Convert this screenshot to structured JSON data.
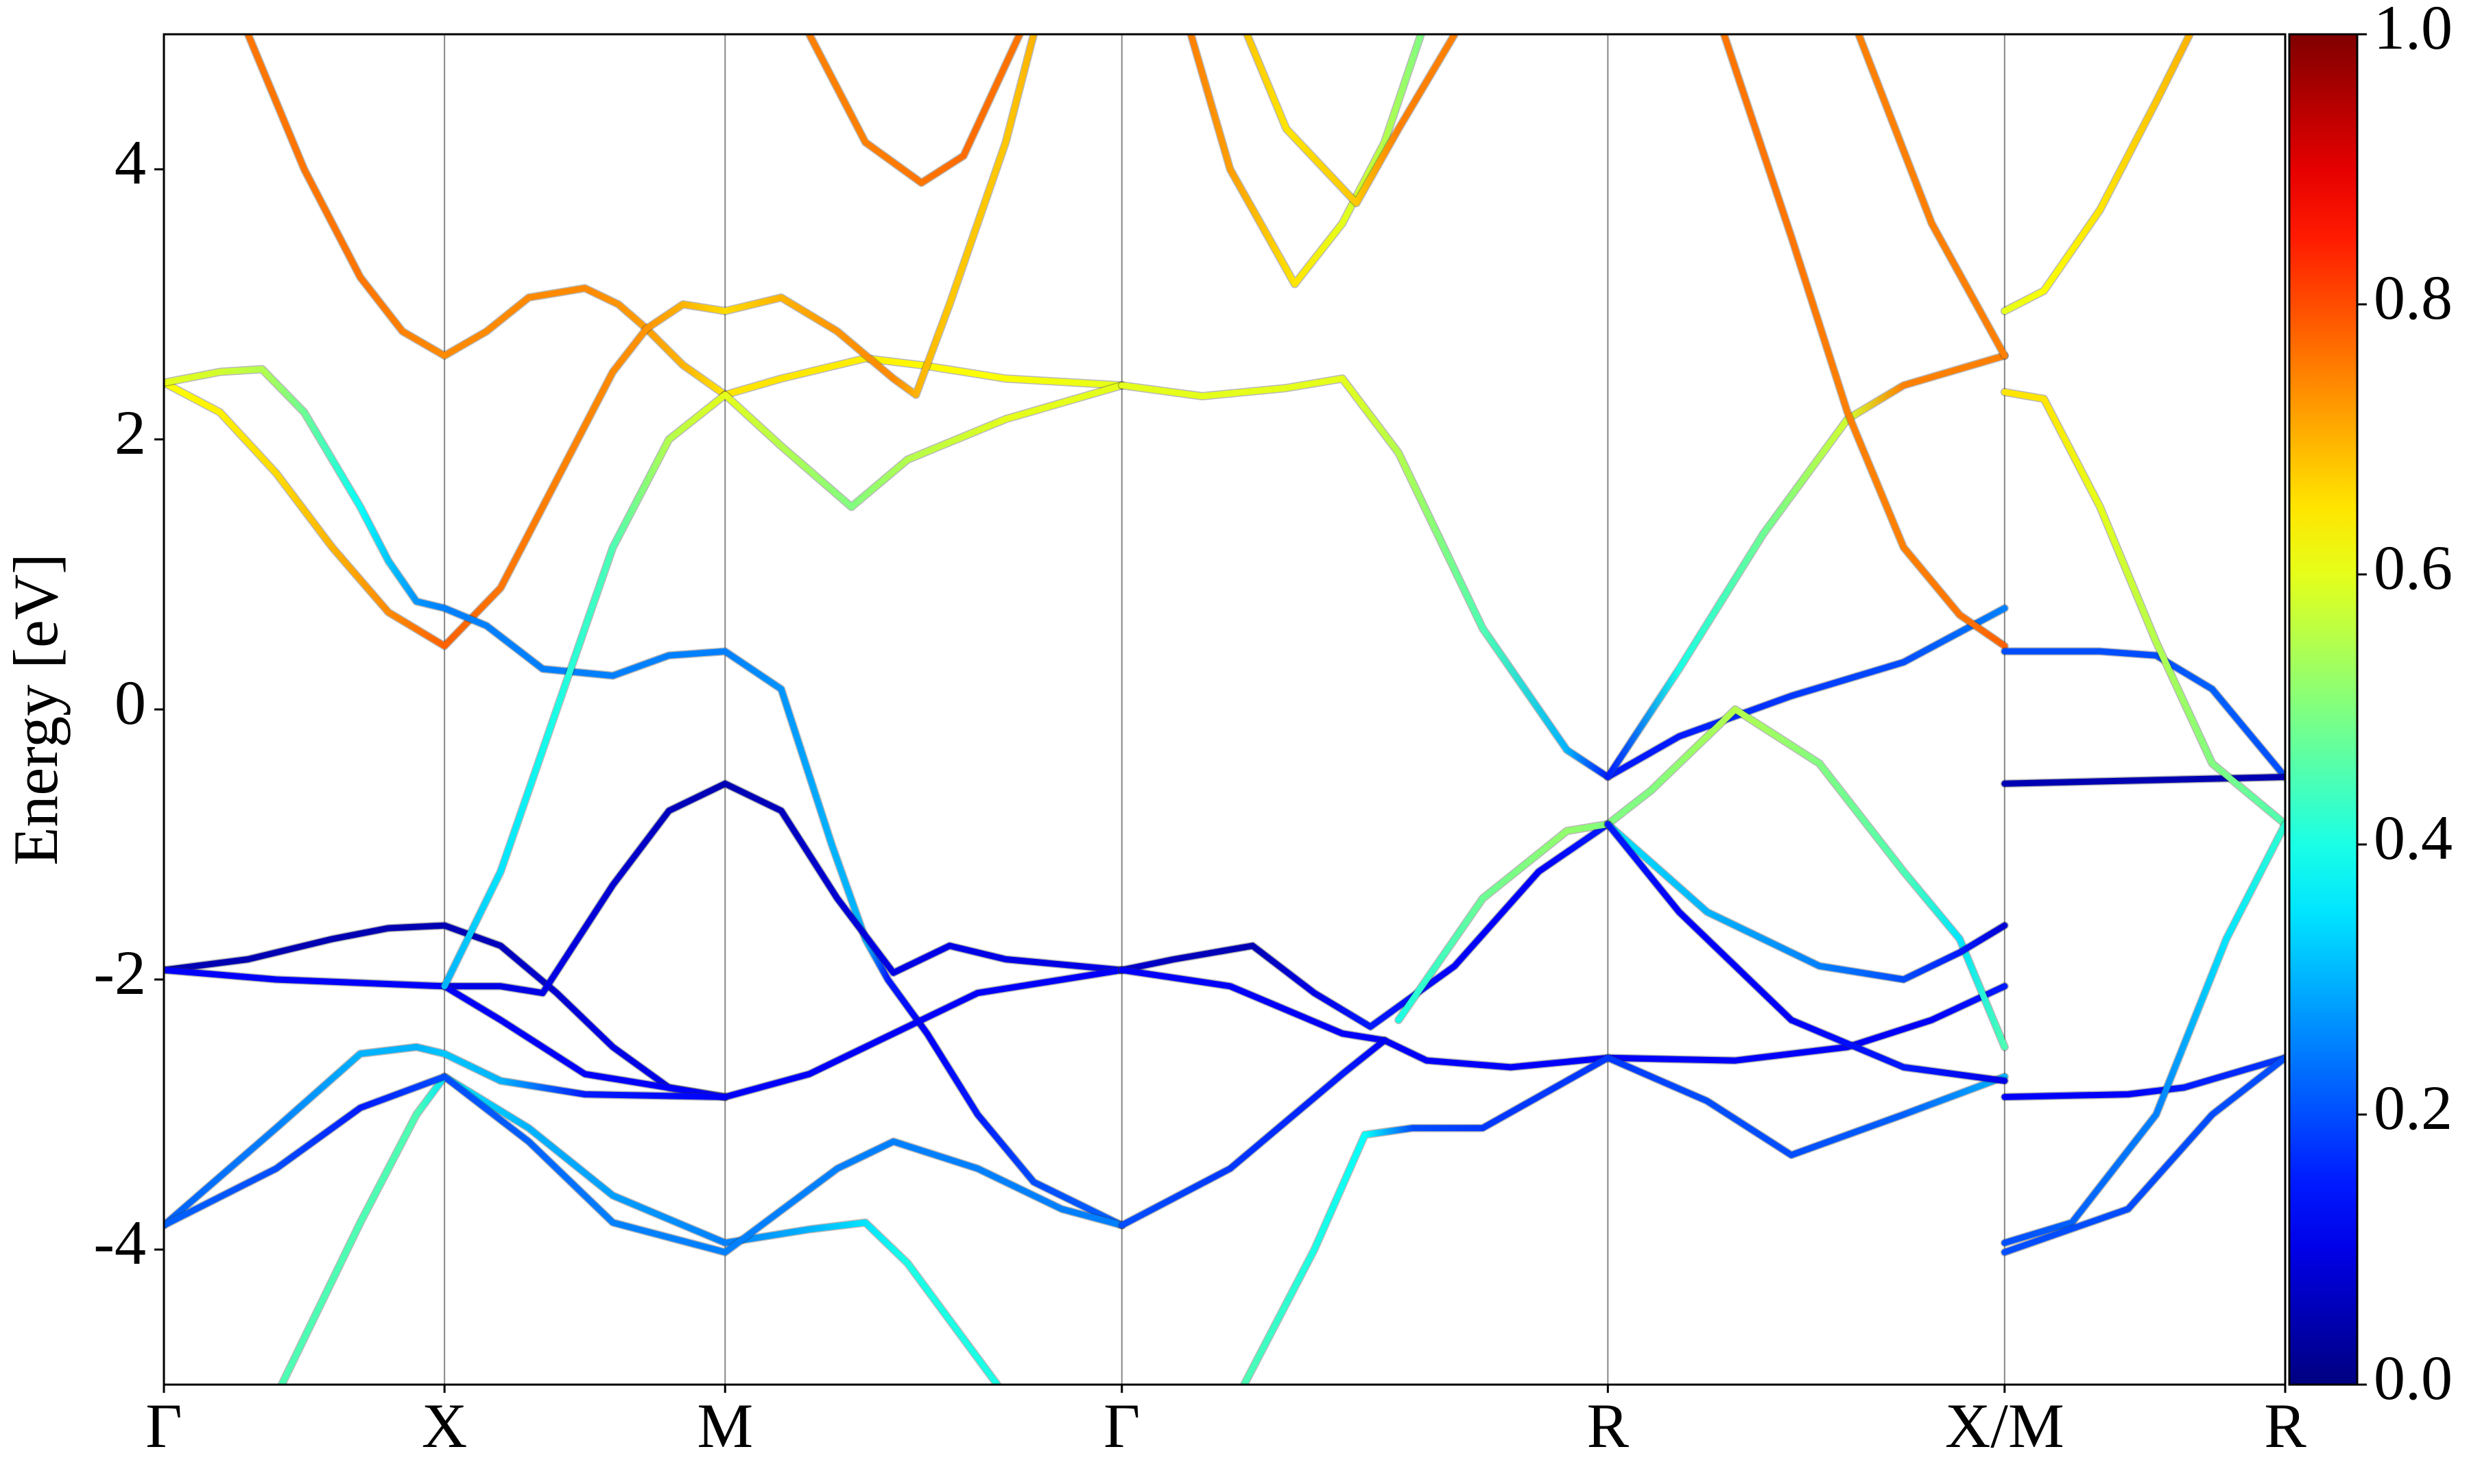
{
  "chart_data": {
    "type": "line",
    "ylabel": "Energy [eV]",
    "colormap": "jet",
    "xlim": [
      0,
      7.56
    ],
    "ylim": [
      -5,
      5
    ],
    "xticks": [
      {
        "value": 0,
        "label": "Γ"
      },
      {
        "value": 1,
        "label": "X"
      },
      {
        "value": 2,
        "label": "M"
      },
      {
        "value": 3.414,
        "label": "Γ"
      },
      {
        "value": 5.146,
        "label": "R"
      },
      {
        "value": 6.56,
        "label": "X/M"
      },
      {
        "value": 7.56,
        "label": "R"
      }
    ],
    "yticks": [
      -4,
      -2,
      0,
      2,
      4
    ],
    "colorbar": {
      "lim": [
        0,
        1
      ],
      "ticks": [
        {
          "value": 0,
          "label": "0.0"
        },
        {
          "value": 0.2,
          "label": "0.2"
        },
        {
          "value": 0.4,
          "label": "0.4"
        },
        {
          "value": 0.6,
          "label": "0.6"
        },
        {
          "value": 0.8,
          "label": "0.8"
        },
        {
          "value": 1,
          "label": "1.0"
        }
      ]
    },
    "series": [
      {
        "x": [
          0.3,
          0.5,
          0.7,
          0.85,
          1,
          1.15,
          1.3,
          1.5,
          1.62,
          1.72,
          1.85,
          2
        ],
        "values": [
          5,
          4,
          3.2,
          2.8,
          2.62,
          2.8,
          3.05,
          3.12,
          3,
          2.82,
          2.55,
          2.33
        ],
        "weights": [
          0.76,
          0.76,
          0.76,
          0.75,
          0.74,
          0.74,
          0.74,
          0.74,
          0.73,
          0.72,
          0.7,
          0.65
        ]
      },
      {
        "x": [
          2,
          2.2,
          2.5,
          2.7,
          3,
          3.414
        ],
        "values": [
          2.33,
          2.45,
          2.6,
          2.55,
          2.45,
          2.4
        ],
        "weights": [
          0.65,
          0.65,
          0.64,
          0.63,
          0.62,
          0.6
        ]
      },
      {
        "x": [
          0,
          0.2,
          0.4,
          0.6,
          0.8,
          1,
          1.2,
          1.4,
          1.6,
          1.72,
          1.85,
          2,
          2.2,
          2.4,
          2.6,
          2.68,
          2.8,
          3,
          3.1
        ],
        "values": [
          2.42,
          2.2,
          1.75,
          1.2,
          0.72,
          0.47,
          0.9,
          1.7,
          2.5,
          2.82,
          3,
          2.95,
          3.05,
          2.8,
          2.45,
          2.33,
          3,
          4.2,
          5
        ],
        "weights": [
          0.62,
          0.64,
          0.66,
          0.7,
          0.74,
          0.78,
          0.76,
          0.75,
          0.74,
          0.73,
          0.7,
          0.66,
          0.7,
          0.73,
          0.74,
          0.7,
          0.68,
          0.68,
          0.7
        ]
      },
      {
        "x": [
          0,
          0.2,
          0.35,
          0.5,
          0.7,
          0.8,
          0.9,
          1,
          1.15,
          1.35,
          1.6,
          1.8,
          2,
          2.2,
          2.38,
          2.5,
          2.58,
          2.72,
          2.9,
          3.1,
          3.414
        ],
        "values": [
          2.42,
          2.5,
          2.52,
          2.2,
          1.5,
          1.1,
          0.8,
          0.75,
          0.62,
          0.3,
          0.25,
          0.4,
          0.43,
          0.15,
          -1,
          -1.7,
          -2,
          -2.4,
          -3,
          -3.5,
          -3.82
        ],
        "weights": [
          0.6,
          0.58,
          0.55,
          0.48,
          0.38,
          0.32,
          0.27,
          0.25,
          0.25,
          0.25,
          0.25,
          0.25,
          0.25,
          0.27,
          0.3,
          0.3,
          0.15,
          0.12,
          0.15,
          0.2,
          0.22
        ]
      },
      {
        "x": [
          0,
          0.3,
          0.6,
          0.8,
          1,
          1.2,
          1.4,
          1.6,
          1.8,
          2
        ],
        "values": [
          -1.93,
          -1.85,
          -1.7,
          -1.62,
          -1.6,
          -1.75,
          -2.1,
          -2.5,
          -2.8,
          -2.87
        ],
        "weights": [
          0.05,
          0.05,
          0.05,
          0.05,
          0.05,
          0.06,
          0.08,
          0.1,
          0.1,
          0.1
        ]
      },
      {
        "x": [
          1,
          1.2,
          1.35,
          1.6,
          1.8,
          2,
          2.2,
          2.4,
          2.6,
          2.8,
          3,
          3.414
        ],
        "values": [
          -2.05,
          -2.05,
          -2.1,
          -1.3,
          -0.75,
          -0.55,
          -0.75,
          -1.4,
          -1.95,
          -1.75,
          -1.85,
          -1.93
        ],
        "weights": [
          0.1,
          0.1,
          0.1,
          0.08,
          0.06,
          0.05,
          0.06,
          0.08,
          0.1,
          0.1,
          0.1,
          0.1
        ]
      },
      {
        "x": [
          0,
          0.4,
          1,
          1.2,
          1.5,
          2,
          2.3,
          2.6,
          2.9,
          3.414
        ],
        "values": [
          -1.93,
          -2,
          -2.05,
          -2.3,
          -2.7,
          -2.87,
          -2.7,
          -2.4,
          -2.1,
          -1.93
        ],
        "weights": [
          0.12,
          0.12,
          0.12,
          0.12,
          0.12,
          0.12,
          0.12,
          0.12,
          0.12,
          0.12
        ]
      },
      {
        "x": [
          0,
          0.4,
          0.7,
          0.9,
          1,
          1.2,
          1.5,
          2
        ],
        "values": [
          -3.82,
          -3.1,
          -2.55,
          -2.5,
          -2.55,
          -2.75,
          -2.85,
          -2.87
        ],
        "weights": [
          0.22,
          0.25,
          0.3,
          0.3,
          0.32,
          0.3,
          0.15,
          0.12
        ]
      },
      {
        "x": [
          1,
          1.2,
          1.4,
          1.6,
          1.8,
          2,
          2.2,
          2.45,
          2.65,
          3,
          3.414
        ],
        "values": [
          -2.05,
          -1.2,
          0,
          1.2,
          2,
          2.33,
          1.95,
          1.5,
          1.85,
          2.15,
          2.4
        ],
        "weights": [
          0.3,
          0.35,
          0.4,
          0.45,
          0.55,
          0.6,
          0.55,
          0.5,
          0.55,
          0.6,
          0.6
        ]
      },
      {
        "x": [
          0.42,
          0.7,
          0.9,
          1,
          1.3,
          1.6,
          2,
          2.3,
          2.5,
          2.65,
          2.97
        ],
        "values": [
          -5,
          -3.8,
          -3,
          -2.72,
          -3.1,
          -3.6,
          -3.95,
          -3.85,
          -3.8,
          -4.1,
          -5
        ],
        "weights": [
          0.45,
          0.45,
          0.45,
          0.35,
          0.3,
          0.28,
          0.25,
          0.3,
          0.35,
          0.4,
          0.4
        ]
      },
      {
        "x": [
          0,
          0.4,
          0.7,
          1,
          1.3,
          1.6,
          2,
          2.4,
          2.6,
          2.9,
          3.2,
          3.414
        ],
        "values": [
          -3.82,
          -3.4,
          -2.95,
          -2.72,
          -3.2,
          -3.8,
          -4.02,
          -3.4,
          -3.2,
          -3.4,
          -3.7,
          -3.82
        ],
        "weights": [
          0.22,
          0.2,
          0.15,
          0.2,
          0.22,
          0.25,
          0.25,
          0.25,
          0.25,
          0.25,
          0.25,
          0.25
        ]
      },
      {
        "x": [
          2.3,
          2.5,
          2.7,
          2.85,
          3.05
        ],
        "values": [
          5,
          4.2,
          3.9,
          4.1,
          5
        ],
        "weights": [
          0.75,
          0.75,
          0.76,
          0.77,
          0.76
        ]
      },
      {
        "x": [
          3.414,
          3.7,
          4,
          4.2,
          4.4,
          4.7,
          5,
          5.146,
          5.4,
          5.8,
          6.2,
          6.56
        ],
        "values": [
          2.4,
          2.32,
          2.38,
          2.45,
          1.9,
          0.6,
          -0.3,
          -0.5,
          -0.2,
          0.1,
          0.35,
          0.75
        ],
        "weights": [
          0.6,
          0.6,
          0.6,
          0.6,
          0.55,
          0.45,
          0.3,
          0.15,
          0.15,
          0.18,
          0.2,
          0.25
        ]
      },
      {
        "x": [
          5.146,
          5.4,
          5.7,
          6,
          6.2,
          6.56
        ],
        "values": [
          -0.5,
          0.3,
          1.3,
          2.15,
          2.4,
          2.62
        ],
        "weights": [
          0.15,
          0.4,
          0.48,
          0.58,
          0.75,
          0.75
        ]
      },
      {
        "x": [
          5.56,
          5.8,
          6,
          6.2,
          6.4,
          6.56
        ],
        "values": [
          5,
          3.5,
          2.2,
          1.2,
          0.7,
          0.47
        ],
        "weights": [
          0.76,
          0.76,
          0.75,
          0.75,
          0.76,
          0.78
        ]
      },
      {
        "x": [
          6.04,
          6.3,
          6.56
        ],
        "values": [
          5,
          3.6,
          2.62
        ],
        "weights": [
          0.75,
          0.75,
          0.75
        ]
      },
      {
        "x": [
          3.66,
          3.8,
          4.03,
          4.2,
          4.35,
          4.48
        ],
        "values": [
          5,
          4,
          3.15,
          3.6,
          4.2,
          5
        ],
        "weights": [
          0.75,
          0.72,
          0.65,
          0.6,
          0.55,
          0.5
        ]
      },
      {
        "x": [
          3.86,
          4,
          4.25,
          4.4,
          4.6
        ],
        "values": [
          5,
          4.3,
          3.75,
          4.3,
          5
        ],
        "weights": [
          0.68,
          0.65,
          0.68,
          0.75,
          0.75
        ]
      },
      {
        "x": [
          3.414,
          3.6,
          3.88,
          4.1,
          4.3,
          4.6,
          4.9,
          5.146
        ],
        "values": [
          -1.93,
          -1.85,
          -1.75,
          -2.1,
          -2.35,
          -1.9,
          -1.2,
          -0.85
        ],
        "weights": [
          0.08,
          0.06,
          0.05,
          0.1,
          0.15,
          0.12,
          0.12,
          0.15
        ]
      },
      {
        "x": [
          3.414,
          3.8,
          4.2,
          4.35,
          4.5,
          4.8,
          5.146,
          5.6,
          6,
          6.3,
          6.56
        ],
        "values": [
          -1.93,
          -2.05,
          -2.4,
          -2.45,
          -2.6,
          -2.65,
          -2.58,
          -2.6,
          -2.5,
          -2.3,
          -2.05
        ],
        "weights": [
          0.12,
          0.12,
          0.12,
          0.12,
          0.12,
          0.12,
          0.12,
          0.12,
          0.12,
          0.12,
          0.15
        ]
      },
      {
        "x": [
          3.414,
          3.8,
          4.2,
          4.35
        ],
        "values": [
          -3.82,
          -3.4,
          -2.7,
          -2.45
        ],
        "weights": [
          0.2,
          0.18,
          0.15,
          0.12
        ]
      },
      {
        "x": [
          3.85,
          4.1,
          4.28,
          4.45,
          4.7,
          5,
          5.146,
          5.5,
          5.8,
          6.2,
          6.56
        ],
        "values": [
          -5,
          -4,
          -3.15,
          -3.1,
          -3.1,
          -2.75,
          -2.58,
          -2.9,
          -3.3,
          -3,
          -2.72
        ],
        "weights": [
          0.45,
          0.4,
          0.38,
          0.2,
          0.18,
          0.18,
          0.18,
          0.2,
          0.2,
          0.22,
          0.3
        ]
      },
      {
        "x": [
          4.4,
          4.7,
          5,
          5.146,
          5.3,
          5.6,
          5.9,
          6.2,
          6.4,
          6.56
        ],
        "values": [
          -2.3,
          -1.4,
          -0.9,
          -0.85,
          -0.6,
          0,
          -0.4,
          -1.2,
          -1.7,
          -2.5
        ],
        "weights": [
          0.4,
          0.48,
          0.52,
          0.5,
          0.5,
          0.55,
          0.5,
          0.45,
          0.35,
          0.45
        ]
      },
      {
        "x": [
          5.146,
          5.5,
          5.9,
          6.2,
          6.4,
          6.56
        ],
        "values": [
          -0.85,
          -1.5,
          -1.9,
          -2,
          -1.8,
          -1.6
        ],
        "weights": [
          0.35,
          0.3,
          0.25,
          0.2,
          0.15,
          0.08
        ]
      },
      {
        "x": [
          5.146,
          5.4,
          5.8,
          6.2,
          6.56
        ],
        "values": [
          -0.85,
          -1.5,
          -2.3,
          -2.65,
          -2.75
        ],
        "weights": [
          0.15,
          0.12,
          0.12,
          0.15,
          0.1
        ]
      },
      {
        "x": [
          6.56,
          6.9,
          7.1,
          7.3,
          7.56
        ],
        "values": [
          0.43,
          0.43,
          0.4,
          0.15,
          -0.5
        ],
        "weights": [
          0.2,
          0.2,
          0.2,
          0.22,
          0.2
        ]
      },
      {
        "x": [
          6.56,
          7.56
        ],
        "values": [
          -0.55,
          -0.5
        ],
        "weights": [
          0.05,
          0.05
        ]
      },
      {
        "x": [
          6.56,
          6.7,
          6.9,
          7.1,
          7.3,
          7.56
        ],
        "values": [
          2.35,
          2.3,
          1.5,
          0.5,
          -0.4,
          -0.85
        ],
        "weights": [
          0.65,
          0.65,
          0.6,
          0.55,
          0.5,
          0.45
        ]
      },
      {
        "x": [
          6.56,
          6.7,
          6.9,
          7.1,
          7.22
        ],
        "values": [
          2.95,
          3.1,
          3.7,
          4.5,
          5
        ],
        "weights": [
          0.6,
          0.62,
          0.65,
          0.68,
          0.7
        ]
      },
      {
        "x": [
          6.56,
          7,
          7.2,
          7.56
        ],
        "values": [
          -2.87,
          -2.85,
          -2.8,
          -2.58
        ],
        "weights": [
          0.12,
          0.12,
          0.15,
          0.18
        ]
      },
      {
        "x": [
          6.56,
          6.8,
          7.1,
          7.35,
          7.56
        ],
        "values": [
          -3.95,
          -3.8,
          -3,
          -1.7,
          -0.85
        ],
        "weights": [
          0.2,
          0.22,
          0.25,
          0.35,
          0.42
        ]
      },
      {
        "x": [
          6.56,
          7,
          7.3,
          7.56
        ],
        "values": [
          -4.02,
          -3.7,
          -3,
          -2.58
        ],
        "weights": [
          0.2,
          0.2,
          0.2,
          0.2
        ]
      }
    ]
  }
}
